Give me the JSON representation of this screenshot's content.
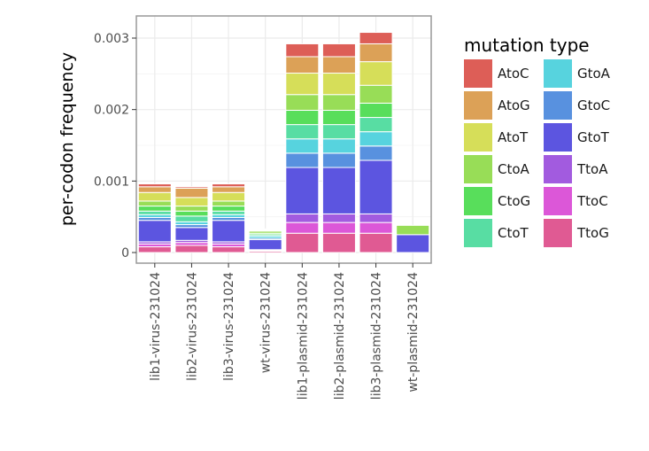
{
  "chart_data": {
    "type": "bar",
    "stacked": true,
    "categories": [
      "lib1-virus-231024",
      "lib2-virus-231024",
      "lib3-virus-231024",
      "wt-virus-231024",
      "lib1-plasmid-231024",
      "lib2-plasmid-231024",
      "lib3-plasmid-231024",
      "wt-plasmid-231024"
    ],
    "ylabel": "per-codon frequency",
    "xlabel": "",
    "ylim": [
      0,
      0.0033
    ],
    "yticks": [
      0,
      0.001,
      0.002,
      0.003
    ],
    "ytick_labels": [
      "0",
      "0.001",
      "0.002",
      "0.003"
    ],
    "grid": true,
    "legend": {
      "title": "mutation type",
      "placement": "right",
      "columns": 2
    },
    "series": [
      {
        "name": "TtoG",
        "color": "#e05a93",
        "values": [
          8e-05,
          0.0001,
          8e-05,
          2e-05,
          0.00027,
          0.00027,
          0.00027,
          0.0
        ]
      },
      {
        "name": "TtoC",
        "color": "#dc57d8",
        "values": [
          4e-05,
          4e-05,
          4e-05,
          1e-05,
          0.00015,
          0.00015,
          0.00015,
          0.0
        ]
      },
      {
        "name": "TtoA",
        "color": "#a25bdf",
        "values": [
          3e-05,
          3e-05,
          3e-05,
          1e-05,
          0.00012,
          0.00012,
          0.00012,
          0.0
        ]
      },
      {
        "name": "GtoT",
        "color": "#5c55e0",
        "values": [
          0.0003,
          0.00018,
          0.0003,
          0.00014,
          0.00065,
          0.00065,
          0.00075,
          0.00025
        ]
      },
      {
        "name": "GtoC",
        "color": "#5891df",
        "values": [
          4e-05,
          4e-05,
          4e-05,
          2e-05,
          0.0002,
          0.0002,
          0.0002,
          0.0
        ]
      },
      {
        "name": "GtoA",
        "color": "#57d3de",
        "values": [
          4e-05,
          4e-05,
          4e-05,
          3e-05,
          0.0002,
          0.0002,
          0.0002,
          0.0
        ]
      },
      {
        "name": "CtoT",
        "color": "#58dda3",
        "values": [
          5e-05,
          8e-05,
          5e-05,
          2e-05,
          0.0002,
          0.0002,
          0.0002,
          0.0
        ]
      },
      {
        "name": "CtoG",
        "color": "#58de5b",
        "values": [
          7e-05,
          7e-05,
          7e-05,
          2e-05,
          0.0002,
          0.0002,
          0.0002,
          0.0
        ]
      },
      {
        "name": "CtoA",
        "color": "#98dd57",
        "values": [
          7e-05,
          7e-05,
          7e-05,
          3e-05,
          0.00022,
          0.00022,
          0.00025,
          0.00013
        ]
      },
      {
        "name": "AtoT",
        "color": "#d6de59",
        "values": [
          0.00012,
          0.00012,
          0.00012,
          1e-05,
          0.0003,
          0.0003,
          0.00033,
          0.0
        ]
      },
      {
        "name": "AtoG",
        "color": "#dca157",
        "values": [
          8e-05,
          0.00013,
          8e-05,
          1e-05,
          0.00023,
          0.00023,
          0.00025,
          0.0
        ]
      },
      {
        "name": "AtoC",
        "color": "#dd5e57",
        "values": [
          4e-05,
          2e-05,
          4e-05,
          1e-05,
          0.00018,
          0.00018,
          0.00016,
          0.0
        ]
      }
    ]
  }
}
